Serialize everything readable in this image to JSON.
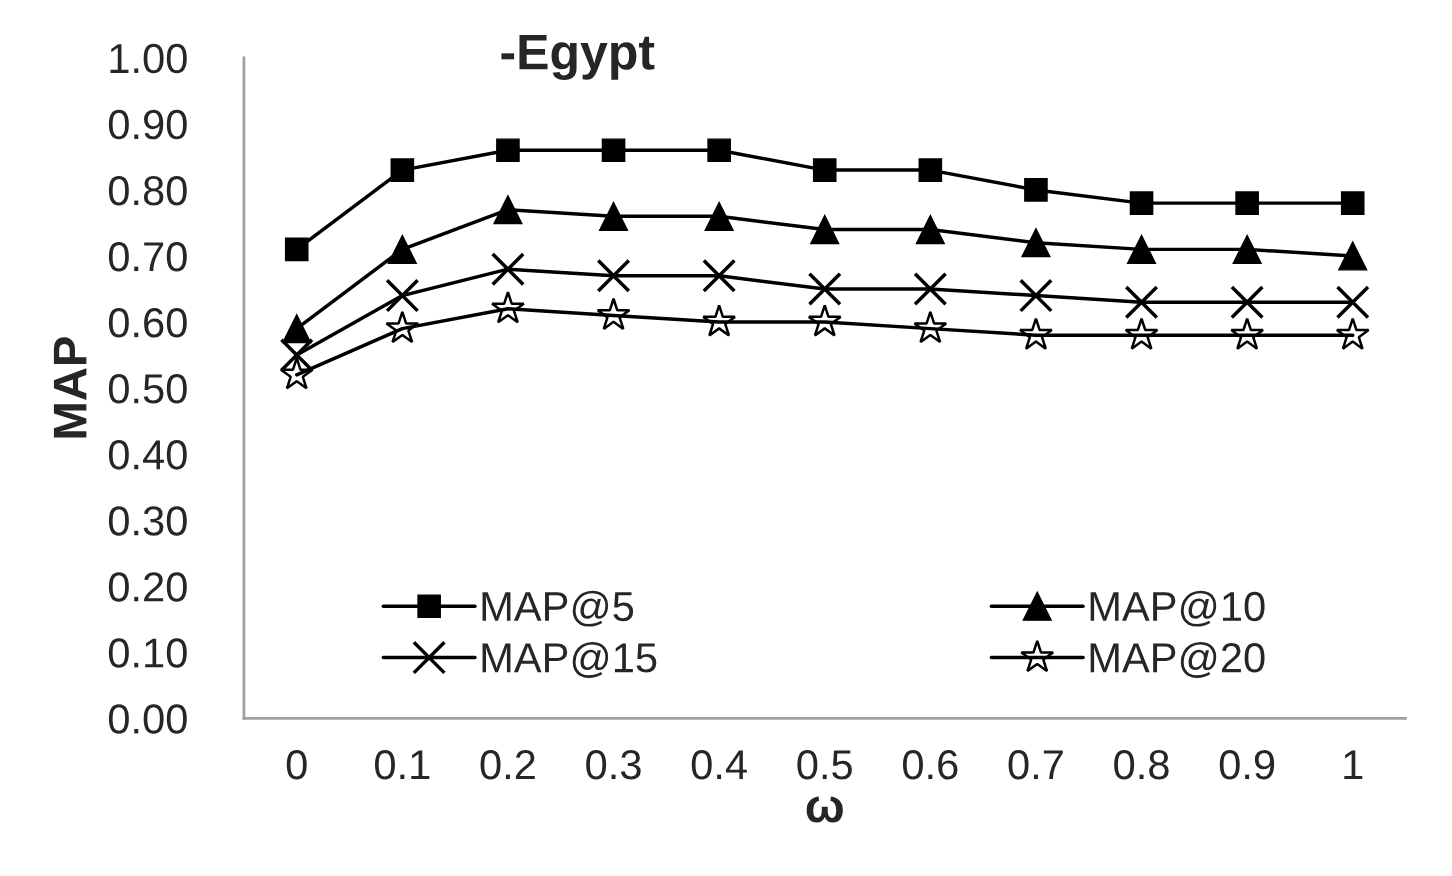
{
  "chart_data": {
    "type": "line",
    "title": "-Egypt",
    "xlabel": "ω",
    "ylabel": "MAP",
    "categories": [
      "0",
      "0.1",
      "0.2",
      "0.3",
      "0.4",
      "0.5",
      "0.6",
      "0.7",
      "0.8",
      "0.9",
      "1"
    ],
    "series": [
      {
        "name": "MAP@5",
        "color": "#000000",
        "marker": "square",
        "values": [
          0.71,
          0.83,
          0.86,
          0.86,
          0.86,
          0.83,
          0.83,
          0.8,
          0.78,
          0.78,
          0.78
        ]
      },
      {
        "name": "MAP@10",
        "color": "#000000",
        "marker": "triangle",
        "values": [
          0.59,
          0.71,
          0.77,
          0.76,
          0.76,
          0.74,
          0.74,
          0.72,
          0.71,
          0.71,
          0.7
        ]
      },
      {
        "name": "MAP@15",
        "color": "#000000",
        "marker": "cross",
        "values": [
          0.55,
          0.64,
          0.68,
          0.67,
          0.67,
          0.65,
          0.65,
          0.64,
          0.63,
          0.63,
          0.63
        ]
      },
      {
        "name": "MAP@20",
        "color": "#000000",
        "marker": "star",
        "values": [
          0.52,
          0.59,
          0.62,
          0.61,
          0.6,
          0.6,
          0.59,
          0.58,
          0.58,
          0.58,
          0.58
        ]
      }
    ],
    "ylim": [
      0,
      1
    ],
    "yticks": [
      {
        "value": 0,
        "label": "0.00"
      },
      {
        "value": 0.1,
        "label": "0.10"
      },
      {
        "value": 0.2,
        "label": "0.20"
      },
      {
        "value": 0.3,
        "label": "0.30"
      },
      {
        "value": 0.4,
        "label": "0.40"
      },
      {
        "value": 0.5,
        "label": "0.50"
      },
      {
        "value": 0.6,
        "label": "0.60"
      },
      {
        "value": 0.7,
        "label": "0.70"
      },
      {
        "value": 0.8,
        "label": "0.80"
      },
      {
        "value": 0.9,
        "label": "0.90"
      },
      {
        "value": 1,
        "label": "1.00"
      }
    ],
    "grid": false,
    "legend": "bottom",
    "line_style": "solid"
  }
}
